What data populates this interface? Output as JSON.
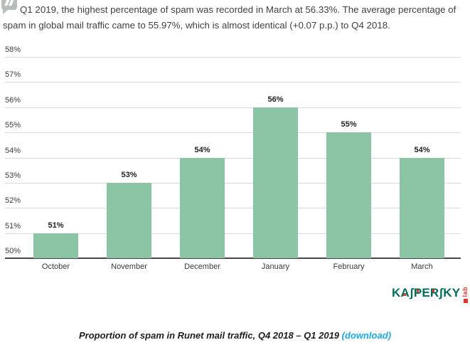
{
  "intro": {
    "text": "Q1 2019, the highest percentage of spam was recorded in March at 56.33%. The average percentage of spam in global mail traffic came to 55.97%, which is almost identical (+0.07 p.p.) to Q4 2018."
  },
  "chart_data": {
    "type": "bar",
    "title": "Proportion of spam in Runet mail traffic, Q4 2018 – Q1 2019",
    "categories": [
      "October",
      "November",
      "December",
      "January",
      "February",
      "March"
    ],
    "values": [
      51,
      53,
      54,
      56,
      55,
      54
    ],
    "value_labels": [
      "51%",
      "53%",
      "54%",
      "56%",
      "55%",
      "54%"
    ],
    "xlabel": "",
    "ylabel": "",
    "ylim": [
      50,
      58
    ],
    "yticks": [
      50,
      51,
      52,
      53,
      54,
      55,
      56,
      57,
      58
    ],
    "ytick_labels": [
      "50%",
      "51%",
      "52%",
      "53%",
      "54%",
      "55%",
      "56%",
      "57%",
      "58%"
    ],
    "grid": true,
    "legend": false,
    "bar_color": "#8cc4a6",
    "gridline_color": "#dbdbdb",
    "baseline_color": "#474747"
  },
  "logo": {
    "brand": "KASPERSKY",
    "brand_display": "KAʃPERʃKY",
    "sub": "lab",
    "brand_color": "#006d5a",
    "accent_color": "#e0362f"
  },
  "caption": {
    "text": "Proportion of spam in Runet mail traffic, Q4 2018 – Q1 2019",
    "link_label": "(download)",
    "link_color": "#1ba7e2"
  }
}
